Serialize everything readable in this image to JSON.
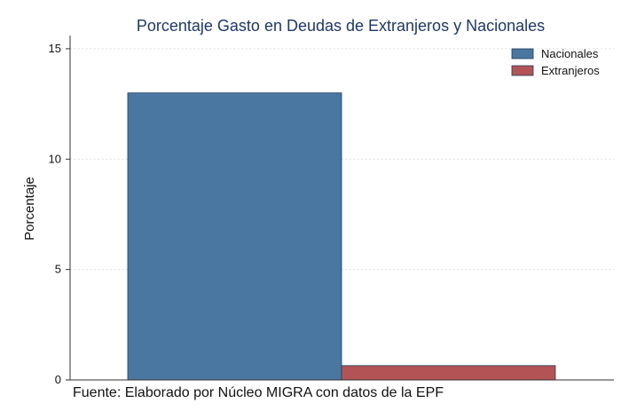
{
  "chart_data": {
    "type": "bar",
    "title": "Porcentaje Gasto en Deudas de Extranjeros y Nacionales",
    "ylabel": "Porcentaje",
    "xlabel": "",
    "ylim": [
      0,
      15.6
    ],
    "yticks": [
      0,
      5,
      10,
      15
    ],
    "grid": true,
    "legend_position": "top-right",
    "series": [
      {
        "name": "Nacionales",
        "value": 13.0,
        "color": "#4a77a1"
      },
      {
        "name": "Extranjeros",
        "value": 0.65,
        "color": "#b35356"
      }
    ],
    "note": "Fuente: Elaborado por Núcleo MIGRA con datos de la EPF"
  }
}
